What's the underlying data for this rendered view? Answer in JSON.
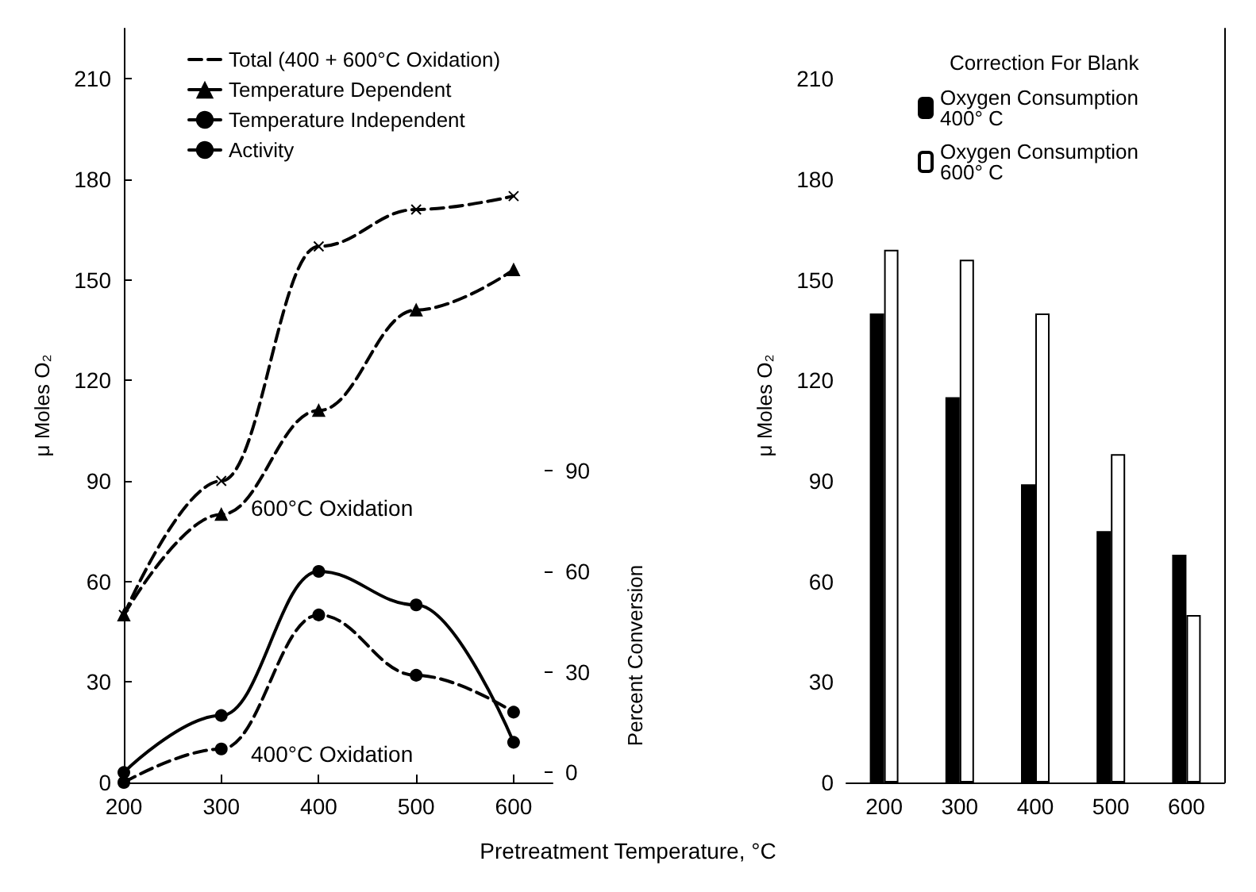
{
  "chart_data": [
    {
      "type": "line",
      "xlabel": "Pretreatment Temperature, °C",
      "ylabel": "μ Moles O₂",
      "y2label": "Percent Conversion",
      "x": [
        200,
        300,
        400,
        500,
        600
      ],
      "series": [
        {
          "name": "Total (400 + 600°C Oxidation)",
          "color": "#000000",
          "marker": "cross",
          "line_style": "dashed",
          "values": [
            50,
            90,
            160,
            171,
            175
          ]
        },
        {
          "name": "Temperature Dependent",
          "color": "#000000",
          "marker": "triangle",
          "line_style": "dashed",
          "values": [
            50,
            80,
            111,
            141,
            153
          ]
        },
        {
          "name": "Temperature Independent",
          "color": "#000000",
          "marker": "circle",
          "line_style": "dashed",
          "values": [
            0,
            10,
            50,
            32,
            21
          ]
        },
        {
          "name": "Activity",
          "color": "#000000",
          "marker": "circle",
          "line_style": "solid",
          "axis": "y2",
          "values": [
            0,
            17,
            60,
            50,
            9
          ]
        }
      ],
      "xlim": [
        200,
        640
      ],
      "xticks": [
        200,
        300,
        400,
        500,
        600
      ],
      "ylim": [
        0,
        225
      ],
      "yticks": [
        0,
        30,
        60,
        90,
        120,
        150,
        180,
        210
      ],
      "y2lim": [
        -3,
        222
      ],
      "y2ticks": [
        0,
        30,
        60,
        90
      ],
      "legend": "top",
      "annotations": [
        "600°C Oxidation",
        "400°C Oxidation"
      ]
    },
    {
      "type": "bar",
      "ylabel": "μ Moles O₂",
      "legend_title": "Correction For Blank",
      "categories": [
        "200",
        "300",
        "400",
        "500",
        "600"
      ],
      "series": [
        {
          "name": "Oxygen Consumption 400° C",
          "color": "#000000",
          "values": [
            140,
            115,
            89,
            75,
            68
          ]
        },
        {
          "name": "Oxygen Consumption 600° C",
          "color": "#ffffff",
          "values": [
            159,
            156,
            140,
            98,
            50
          ]
        }
      ],
      "ylim": [
        0,
        225
      ],
      "yticks": [
        0,
        30,
        60,
        90,
        120,
        150,
        180,
        210
      ],
      "legend": "top"
    }
  ]
}
